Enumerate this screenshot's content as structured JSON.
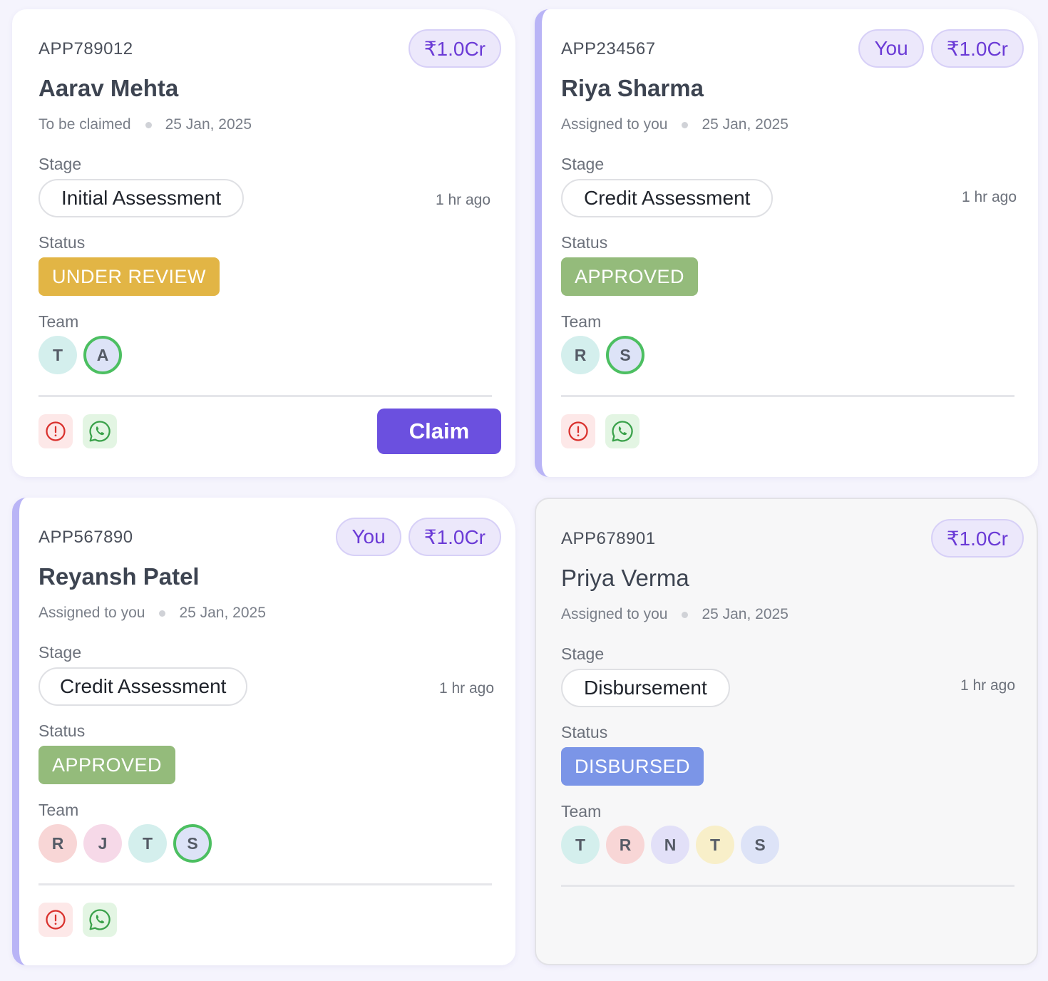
{
  "cards": [
    {
      "app_id": "APP789012",
      "amount": "₹1.0Cr",
      "you_label": "",
      "name": "Aarav Mehta",
      "assignment": "To be claimed",
      "date": "25 Jan, 2025",
      "stage_label": "Stage",
      "stage": "Initial Assessment",
      "time_ago": "1 hr ago",
      "status_label": "Status",
      "status": "UNDER REVIEW",
      "status_color": "#e2b545",
      "team_label": "Team",
      "team": [
        {
          "initial": "T",
          "bg": "#d4efed",
          "self": false
        },
        {
          "initial": "A",
          "bg": "#dde3f7",
          "self": true
        }
      ],
      "action_icons": [
        "alert-icon",
        "whatsapp-icon"
      ],
      "claim_label": "Claim"
    },
    {
      "app_id": "APP234567",
      "amount": "₹1.0Cr",
      "you_label": "You",
      "name": "Riya Sharma",
      "assignment": "Assigned to you",
      "date": "25 Jan, 2025",
      "stage_label": "Stage",
      "stage": "Credit Assessment",
      "time_ago": "1 hr ago",
      "status_label": "Status",
      "status": "APPROVED",
      "status_color": "#94bb7b",
      "team_label": "Team",
      "team": [
        {
          "initial": "R",
          "bg": "#d4efed",
          "self": false
        },
        {
          "initial": "S",
          "bg": "#dde3f7",
          "self": true
        }
      ],
      "action_icons": [
        "alert-icon",
        "whatsapp-icon"
      ]
    },
    {
      "app_id": "APP567890",
      "amount": "₹1.0Cr",
      "you_label": "You",
      "name": "Reyansh Patel",
      "assignment": "Assigned to you",
      "date": "25 Jan, 2025",
      "stage_label": "Stage",
      "stage": "Credit Assessment",
      "time_ago": "1 hr ago",
      "status_label": "Status",
      "status": "APPROVED",
      "status_color": "#94bb7b",
      "team_label": "Team",
      "team": [
        {
          "initial": "R",
          "bg": "#f8d6d6",
          "self": false
        },
        {
          "initial": "J",
          "bg": "#f6d9e8",
          "self": false
        },
        {
          "initial": "T",
          "bg": "#d4efed",
          "self": false
        },
        {
          "initial": "S",
          "bg": "#dde3f7",
          "self": true
        }
      ],
      "action_icons": [
        "alert-icon",
        "whatsapp-icon"
      ]
    },
    {
      "app_id": "APP678901",
      "amount": "₹1.0Cr",
      "you_label": "",
      "name": "Priya Verma",
      "assignment": "Assigned to you",
      "date": "25 Jan, 2025",
      "stage_label": "Stage",
      "stage": "Disbursement",
      "time_ago": "1 hr ago",
      "status_label": "Status",
      "status": "DISBURSED",
      "status_color": "#7b95e7",
      "team_label": "Team",
      "team": [
        {
          "initial": "T",
          "bg": "#d4efed",
          "self": false
        },
        {
          "initial": "R",
          "bg": "#f8d6d6",
          "self": false
        },
        {
          "initial": "N",
          "bg": "#e2e0f8",
          "self": false
        },
        {
          "initial": "T",
          "bg": "#f8efc9",
          "self": false
        },
        {
          "initial": "S",
          "bg": "#dde3f7",
          "self": false
        }
      ],
      "action_icons": []
    }
  ],
  "colors": {
    "accent_purple": "#6b50df",
    "pill_text": "#6b3bd6",
    "self_ring": "#4cbf61",
    "alert_red": "#d9302c",
    "whatsapp_green": "#3aa14a"
  }
}
